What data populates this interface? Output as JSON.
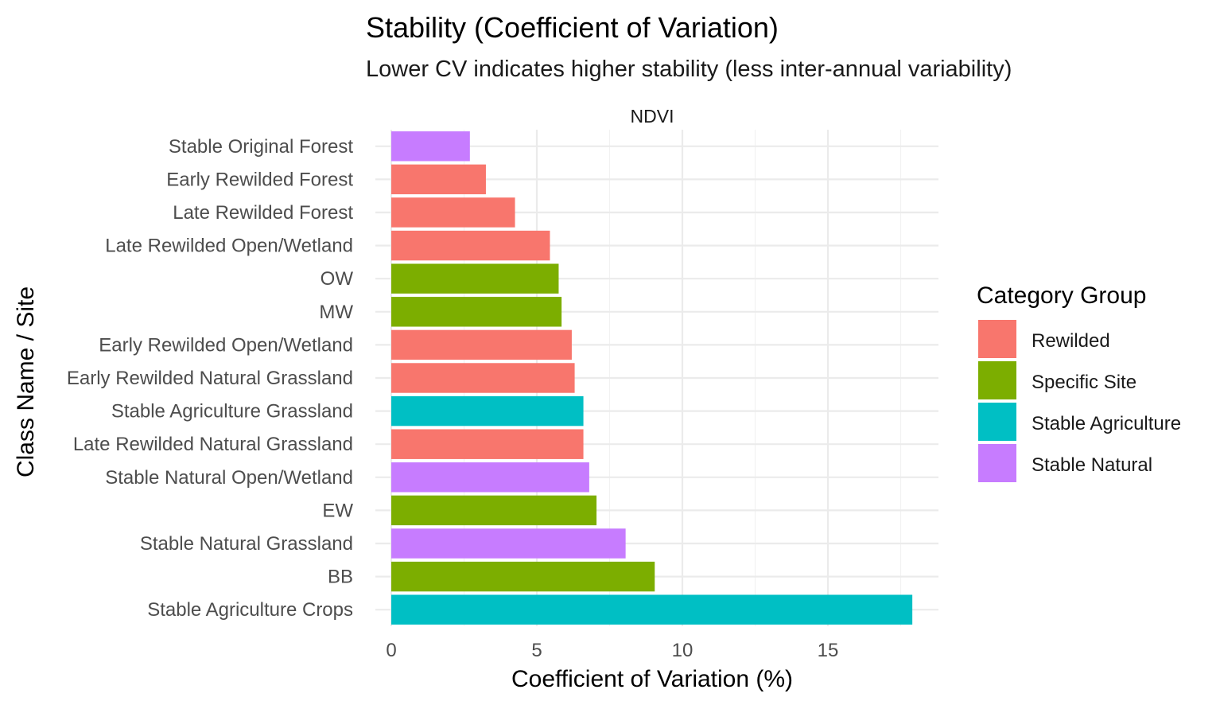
{
  "chart_data": {
    "type": "bar",
    "orientation": "horizontal",
    "title": "Stability (Coefficient of Variation)",
    "subtitle": "Lower CV indicates higher stability (less inter-annual variability)",
    "facet": "NDVI",
    "xlabel": "Coefficient of Variation (%)",
    "ylabel": "Class Name / Site",
    "xlim": [
      0,
      18.8
    ],
    "x_ticks": [
      "0",
      "5",
      "10",
      "15"
    ],
    "grid": true,
    "legend": {
      "title": "Category Group",
      "position": "right",
      "entries": [
        {
          "name": "Rewilded",
          "color": "#F8766D"
        },
        {
          "name": "Specific Site",
          "color": "#7CAE00"
        },
        {
          "name": "Stable Agriculture",
          "color": "#00BFC4"
        },
        {
          "name": "Stable Natural",
          "color": "#C77CFF"
        }
      ]
    },
    "bars": [
      {
        "label": "Stable Original Forest",
        "value": 2.7,
        "group": "Stable Natural"
      },
      {
        "label": "Early Rewilded Forest",
        "value": 3.25,
        "group": "Rewilded"
      },
      {
        "label": "Late Rewilded Forest",
        "value": 4.25,
        "group": "Rewilded"
      },
      {
        "label": "Late Rewilded Open/Wetland",
        "value": 5.45,
        "group": "Rewilded"
      },
      {
        "label": "OW",
        "value": 5.75,
        "group": "Specific Site"
      },
      {
        "label": "MW",
        "value": 5.85,
        "group": "Specific Site"
      },
      {
        "label": "Early Rewilded Open/Wetland",
        "value": 6.2,
        "group": "Rewilded"
      },
      {
        "label": "Early Rewilded Natural Grassland",
        "value": 6.3,
        "group": "Rewilded"
      },
      {
        "label": "Stable Agriculture Grassland",
        "value": 6.6,
        "group": "Stable Agriculture"
      },
      {
        "label": "Late Rewilded Natural Grassland",
        "value": 6.6,
        "group": "Rewilded"
      },
      {
        "label": "Stable Natural Open/Wetland",
        "value": 6.8,
        "group": "Stable Natural"
      },
      {
        "label": "EW",
        "value": 7.05,
        "group": "Specific Site"
      },
      {
        "label": "Stable Natural Grassland",
        "value": 8.05,
        "group": "Stable Natural"
      },
      {
        "label": "BB",
        "value": 9.05,
        "group": "Specific Site"
      },
      {
        "label": "Stable Agriculture Crops",
        "value": 17.9,
        "group": "Stable Agriculture"
      }
    ]
  }
}
